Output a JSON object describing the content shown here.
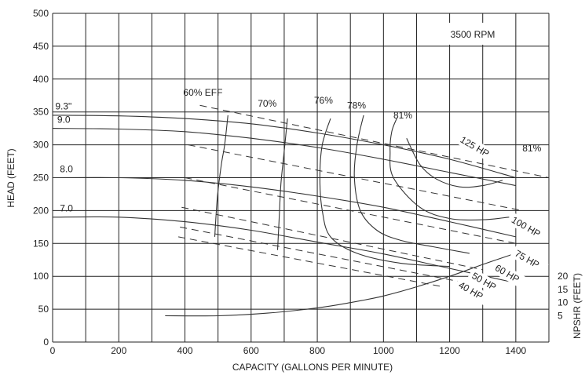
{
  "chart_data": {
    "type": "line",
    "title": "",
    "annotation": "3500 RPM",
    "xlabel": "CAPACITY (GALLONS PER MINUTE)",
    "ylabel": "HEAD (FEET)",
    "y2label": "NPSHR (FEET)",
    "xlim": [
      0,
      1500
    ],
    "ylim": [
      0,
      500
    ],
    "x_ticks": [
      0,
      200,
      400,
      600,
      800,
      1000,
      1200,
      1400
    ],
    "y_ticks": [
      0,
      50,
      100,
      150,
      200,
      250,
      300,
      350,
      400,
      450,
      500
    ],
    "y2_ticks": [
      {
        "label": "20",
        "head": 100
      },
      {
        "label": "15",
        "head": 80
      },
      {
        "label": "10",
        "head": 60
      },
      {
        "label": "5",
        "head": 40
      }
    ],
    "grid": true,
    "impeller_curves": [
      {
        "name": "9.3\"",
        "points": [
          [
            0,
            345
          ],
          [
            200,
            344
          ],
          [
            400,
            340
          ],
          [
            600,
            332
          ],
          [
            800,
            318
          ],
          [
            1000,
            300
          ],
          [
            1200,
            278
          ],
          [
            1400,
            250
          ]
        ]
      },
      {
        "name": "9.0",
        "points": [
          [
            0,
            325
          ],
          [
            200,
            324
          ],
          [
            400,
            320
          ],
          [
            600,
            310
          ],
          [
            800,
            296
          ],
          [
            1000,
            278
          ],
          [
            1200,
            258
          ],
          [
            1400,
            238
          ]
        ]
      },
      {
        "name": "8.0",
        "points": [
          [
            0,
            250
          ],
          [
            200,
            250
          ],
          [
            400,
            246
          ],
          [
            600,
            236
          ],
          [
            800,
            222
          ],
          [
            1000,
            205
          ],
          [
            1200,
            183
          ],
          [
            1400,
            160
          ]
        ]
      },
      {
        "name": "7.0",
        "points": [
          [
            0,
            190
          ],
          [
            200,
            190
          ],
          [
            400,
            183
          ],
          [
            600,
            170
          ],
          [
            800,
            152
          ],
          [
            1000,
            134
          ],
          [
            1200,
            112
          ],
          [
            1400,
            90
          ]
        ]
      }
    ],
    "efficiency_curves": [
      {
        "name": "60% EFF",
        "points": [
          [
            490,
            160
          ],
          [
            498,
            220
          ],
          [
            510,
            270
          ],
          [
            520,
            300
          ],
          [
            530,
            345
          ]
        ]
      },
      {
        "name": "70%",
        "points": [
          [
            680,
            140
          ],
          [
            685,
            190
          ],
          [
            690,
            240
          ],
          [
            700,
            290
          ],
          [
            710,
            340
          ]
        ]
      },
      {
        "name": "76%",
        "points": [
          [
            1200,
            115
          ],
          [
            1050,
            120
          ],
          [
            920,
            135
          ],
          [
            840,
            160
          ],
          [
            815,
            200
          ],
          [
            808,
            250
          ],
          [
            815,
            300
          ],
          [
            840,
            340
          ]
        ]
      },
      {
        "name": "78%",
        "points": [
          [
            1260,
            135
          ],
          [
            1150,
            145
          ],
          [
            1050,
            155
          ],
          [
            980,
            170
          ],
          [
            930,
            200
          ],
          [
            912,
            250
          ],
          [
            920,
            300
          ],
          [
            940,
            345
          ]
        ]
      },
      {
        "name": "81%",
        "points": [
          [
            1380,
            190
          ],
          [
            1300,
            186
          ],
          [
            1200,
            188
          ],
          [
            1110,
            205
          ],
          [
            1030,
            250
          ],
          [
            1020,
            290
          ],
          [
            1025,
            320
          ],
          [
            1040,
            340
          ]
        ]
      },
      {
        "name": "81%",
        "points": [
          [
            1070,
            310
          ],
          [
            1110,
            270
          ],
          [
            1160,
            248
          ],
          [
            1230,
            236
          ],
          [
            1300,
            238
          ],
          [
            1360,
            246
          ]
        ]
      }
    ],
    "horsepower_lines": [
      {
        "name": "125 HP",
        "points": [
          [
            445,
            360
          ],
          [
            1500,
            250
          ]
        ]
      },
      {
        "name": "100 HP",
        "points": [
          [
            410,
            300
          ],
          [
            1420,
            200
          ]
        ]
      },
      {
        "name": "75 HP",
        "points": [
          [
            400,
            250
          ],
          [
            1400,
            150
          ]
        ]
      },
      {
        "name": "60 HP",
        "points": [
          [
            390,
            205
          ],
          [
            1300,
            110
          ]
        ]
      },
      {
        "name": "50 HP",
        "points": [
          [
            385,
            175
          ],
          [
            1230,
            92
          ]
        ]
      },
      {
        "name": "40 HP",
        "points": [
          [
            380,
            160
          ],
          [
            1170,
            85
          ]
        ]
      }
    ],
    "npshr_curve": {
      "points": [
        [
          340,
          40
        ],
        [
          500,
          40
        ],
        [
          650,
          44
        ],
        [
          800,
          52
        ],
        [
          900,
          60
        ],
        [
          1000,
          70
        ],
        [
          1100,
          84
        ],
        [
          1200,
          100
        ],
        [
          1300,
          118
        ],
        [
          1400,
          135
        ]
      ]
    }
  }
}
